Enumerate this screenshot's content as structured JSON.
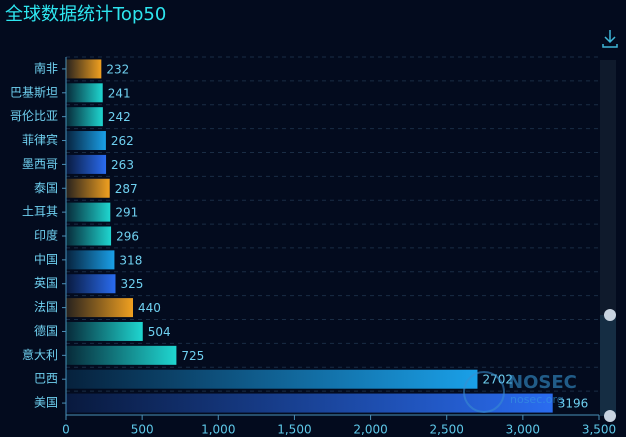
{
  "chart_data": {
    "type": "hbar",
    "title": "全球数据统计Top50",
    "categories": [
      "南非",
      "巴基斯坦",
      "哥伦比亚",
      "菲律宾",
      "墨西哥",
      "泰国",
      "土耳其",
      "印度",
      "中国",
      "英国",
      "法国",
      "德国",
      "意大利",
      "巴西",
      "美国"
    ],
    "values": [
      232,
      241,
      242,
      262,
      263,
      287,
      291,
      296,
      318,
      325,
      440,
      504,
      725,
      2702,
      3196
    ],
    "colors": [
      "#f0a020",
      "#1fd6d0",
      "#1fd6d0",
      "#1aa0e8",
      "#2a6cf0",
      "#f0a020",
      "#1fd6d0",
      "#1fd6d0",
      "#1aa0e8",
      "#2a6cf0",
      "#f0a020",
      "#1fd6d0",
      "#1fd6d0",
      "#1aa0e8",
      "#2a6cf0"
    ],
    "xlim": [
      0,
      3500
    ],
    "xticks": [
      0,
      500,
      {
        "value": 1000,
        "label": "1,000"
      },
      {
        "value": 1500,
        "label": "1,500"
      },
      {
        "value": 2000,
        "label": "2,000"
      },
      {
        "value": 2500,
        "label": "2,500"
      },
      {
        "value": 3000,
        "label": "3,000"
      },
      {
        "value": 3500,
        "label": "3,500"
      }
    ],
    "grid": true
  },
  "watermark": {
    "text": "NOSEC",
    "url": "nosec.org"
  }
}
